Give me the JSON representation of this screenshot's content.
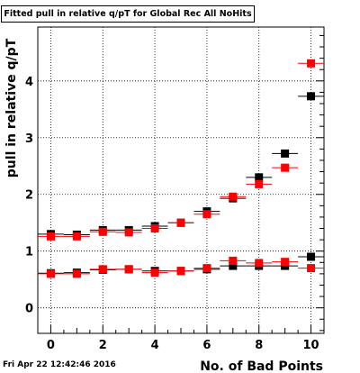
{
  "title": "Fitted pull in relative q/pT for Global Rec All NoHits",
  "timestamp": "Fri Apr 22 12:42:46 2016",
  "colors": {
    "series_black": "#000000",
    "series_red": "#ff0000",
    "grid": "#000000"
  },
  "chart_data": {
    "type": "scatter",
    "title": "Fitted pull in relative q/pT for Global Rec All NoHits",
    "xlabel": "No. of Bad Points",
    "ylabel": "pull in relative q/pT",
    "xlim": [
      -0.5,
      10.5
    ],
    "ylim": [
      -0.45,
      4.95
    ],
    "grid": true,
    "x_ticks": [
      0,
      2,
      4,
      6,
      8,
      10
    ],
    "y_ticks": [
      0,
      1,
      2,
      3,
      4
    ],
    "series": [
      {
        "color": "#000000",
        "marker": "square",
        "x": [
          0,
          1,
          2,
          3,
          4,
          5,
          6,
          7,
          8,
          9,
          10
        ],
        "y": [
          1.3,
          1.29,
          1.37,
          1.37,
          1.44,
          1.5,
          1.7,
          1.93,
          2.3,
          2.72,
          3.73
        ]
      },
      {
        "color": "#ff0000",
        "marker": "square",
        "x": [
          0,
          1,
          2,
          3,
          4,
          5,
          6,
          7,
          8,
          9,
          10
        ],
        "y": [
          1.26,
          1.26,
          1.34,
          1.33,
          1.4,
          1.5,
          1.65,
          1.96,
          2.18,
          2.47,
          4.31
        ]
      },
      {
        "color": "#000000",
        "marker": "square",
        "x": [
          0,
          1,
          2,
          3,
          4,
          5,
          6,
          7,
          8,
          9,
          10
        ],
        "y": [
          0.61,
          0.62,
          0.67,
          0.68,
          0.65,
          0.65,
          0.68,
          0.74,
          0.74,
          0.74,
          0.9
        ]
      },
      {
        "color": "#ff0000",
        "marker": "square",
        "x": [
          0,
          1,
          2,
          3,
          4,
          5,
          6,
          7,
          8,
          9,
          10
        ],
        "y": [
          0.6,
          0.6,
          0.68,
          0.68,
          0.62,
          0.65,
          0.7,
          0.83,
          0.79,
          0.81,
          0.7
        ]
      }
    ]
  }
}
